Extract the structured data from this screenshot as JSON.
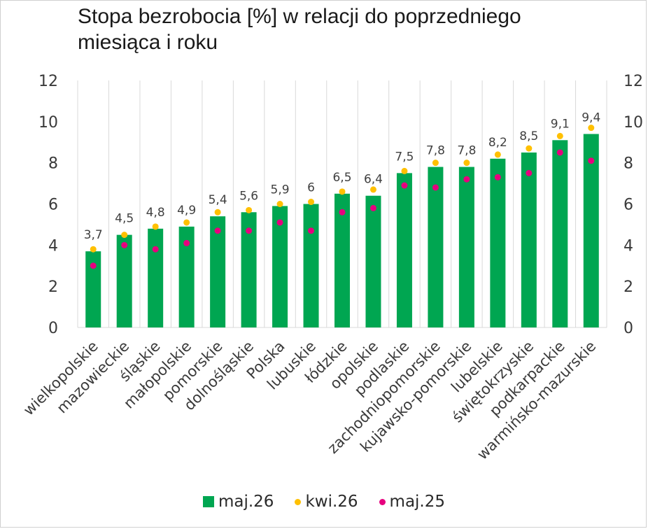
{
  "chart_data": {
    "type": "bar",
    "title": "Stopa bezrobocia [%] w relacji do poprzedniego miesiąca i roku",
    "categories": [
      "wielkopolskie",
      "mazowieckie",
      "śląskie",
      "małopolskie",
      "pomorskie",
      "dolnośląskie",
      "Polska",
      "lubuskie",
      "łódzkie",
      "opolskie",
      "podlaskie",
      "zachodniopomorskie",
      "kujawsko-pomorskie",
      "lubelskie",
      "świętokrzyskie",
      "podkarpackie",
      "warmińsko-mazurskie"
    ],
    "series": [
      {
        "name": "maj.26",
        "kind": "bar",
        "color": "#00a651",
        "values": [
          3.7,
          4.5,
          4.8,
          4.9,
          5.4,
          5.6,
          5.9,
          6,
          6.5,
          6.4,
          7.5,
          7.8,
          7.8,
          8.2,
          8.5,
          9.1,
          9.4
        ],
        "labels": [
          "3,7",
          "4,5",
          "4,8",
          "4,9",
          "5,4",
          "5,6",
          "5,9",
          "6",
          "6,5",
          "6,4",
          "7,5",
          "7,8",
          "7,8",
          "8,2",
          "8,5",
          "9,1",
          "9,4"
        ]
      },
      {
        "name": "kwi.26",
        "kind": "marker",
        "color": "#ffc000",
        "values": [
          3.8,
          4.5,
          4.9,
          5.1,
          5.6,
          5.7,
          6.0,
          6.1,
          6.6,
          6.7,
          7.6,
          8.0,
          8.0,
          8.4,
          8.7,
          9.3,
          9.7
        ]
      },
      {
        "name": "maj.25",
        "kind": "marker",
        "color": "#e6007e",
        "values": [
          3.0,
          4.0,
          3.8,
          4.1,
          4.7,
          4.7,
          5.1,
          4.7,
          5.6,
          5.8,
          6.9,
          6.8,
          7.2,
          7.3,
          7.5,
          8.5,
          8.1
        ]
      }
    ],
    "ylim": [
      0,
      12
    ],
    "yticks": [
      "0",
      "2",
      "4",
      "6",
      "8",
      "10",
      "12"
    ],
    "grid": "vertical",
    "legend": "bottom"
  }
}
